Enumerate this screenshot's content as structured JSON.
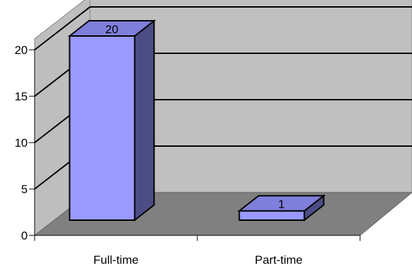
{
  "chart_data": {
    "type": "bar",
    "style": "3d-column",
    "categories": [
      "Full-time",
      "Part-time"
    ],
    "values": [
      20,
      1
    ],
    "data_labels": [
      "20",
      "1"
    ],
    "ylim": [
      0,
      20
    ],
    "yticks": [
      0,
      5,
      10,
      15,
      20
    ],
    "ytick_labels": [
      "0",
      "5",
      "10",
      "15",
      "20"
    ],
    "title": "",
    "xlabel": "",
    "ylabel": "",
    "grid": true,
    "legend": "none",
    "colors": {
      "bar_front": "#9999ff",
      "bar_top": "#7f7fdc",
      "bar_side": "#4d4d86",
      "back_wall": "#c0c0c0",
      "side_wall": "#bebebe",
      "floor": "#808080",
      "gridline": "#000000"
    }
  }
}
